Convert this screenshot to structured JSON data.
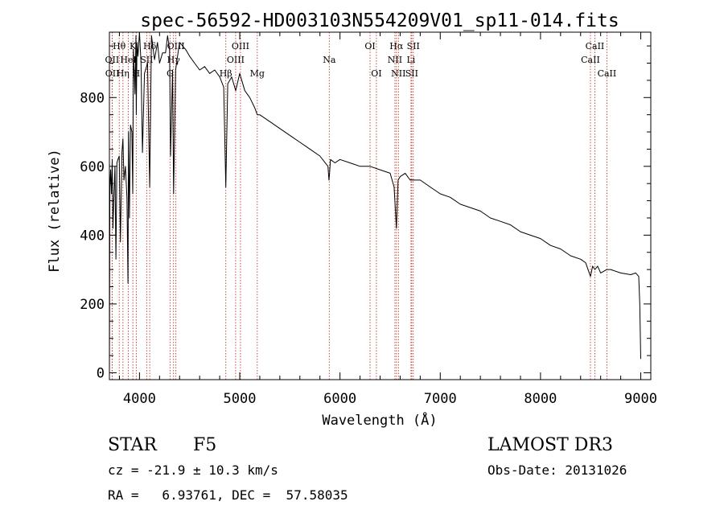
{
  "chart_data": {
    "type": "line",
    "title": "spec-56592-HD003103N554209V01_sp11-014.fits",
    "xlabel": "Wavelength (Å)",
    "ylabel": "Flux (relative)",
    "xlim": [
      3700,
      9100
    ],
    "ylim": [
      -20,
      990
    ],
    "x_ticks": [
      4000,
      5000,
      6000,
      7000,
      8000,
      9000
    ],
    "y_ticks": [
      0,
      200,
      400,
      600,
      800
    ],
    "grid": false,
    "series": [
      {
        "name": "flux",
        "x": [
          3700,
          3705,
          3712,
          3720,
          3728,
          3735,
          3745,
          3755,
          3765,
          3775,
          3785,
          3798,
          3810,
          3825,
          3835,
          3845,
          3860,
          3875,
          3885,
          3890,
          3900,
          3910,
          3925,
          3933,
          3940,
          3955,
          3965,
          3968,
          3975,
          3985,
          4000,
          4015,
          4030,
          4050,
          4080,
          4102,
          4120,
          4150,
          4180,
          4200,
          4230,
          4260,
          4280,
          4300,
          4310,
          4330,
          4340,
          4360,
          4380,
          4400,
          4430,
          4460,
          4500,
          4550,
          4600,
          4650,
          4700,
          4750,
          4800,
          4840,
          4861,
          4880,
          4920,
          4960,
          5000,
          5050,
          5100,
          5150,
          5175,
          5200,
          5300,
          5400,
          5500,
          5600,
          5700,
          5800,
          5880,
          5890,
          5896,
          5905,
          5950,
          6000,
          6100,
          6200,
          6300,
          6400,
          6500,
          6540,
          6563,
          6580,
          6600,
          6650,
          6700,
          6800,
          6900,
          7000,
          7100,
          7200,
          7300,
          7400,
          7500,
          7600,
          7700,
          7800,
          7900,
          8000,
          8100,
          8200,
          8300,
          8400,
          8450,
          8498,
          8520,
          8542,
          8570,
          8600,
          8662,
          8700,
          8800,
          8900,
          8950,
          8980,
          8990,
          9000
        ],
        "values": [
          0,
          540,
          590,
          520,
          620,
          420,
          510,
          600,
          330,
          610,
          620,
          630,
          380,
          640,
          680,
          560,
          600,
          510,
          260,
          700,
          450,
          720,
          700,
          520,
          940,
          810,
          980,
          750,
          960,
          920,
          990,
          900,
          640,
          870,
          900,
          540,
          980,
          910,
          960,
          900,
          930,
          930,
          980,
          940,
          630,
          880,
          520,
          880,
          920,
          960,
          950,
          940,
          920,
          900,
          880,
          890,
          870,
          880,
          860,
          830,
          540,
          840,
          860,
          820,
          870,
          820,
          800,
          770,
          750,
          750,
          730,
          710,
          690,
          670,
          650,
          630,
          600,
          560,
          580,
          620,
          610,
          620,
          610,
          600,
          600,
          590,
          580,
          540,
          420,
          560,
          570,
          580,
          560,
          560,
          540,
          520,
          510,
          490,
          480,
          470,
          450,
          440,
          430,
          410,
          400,
          390,
          370,
          360,
          340,
          330,
          320,
          280,
          310,
          300,
          310,
          290,
          300,
          300,
          290,
          285,
          290,
          280,
          200,
          40
        ]
      }
    ],
    "line_markers": [
      {
        "name": "Hθ",
        "wl": 3798,
        "row": 0
      },
      {
        "name": "OII",
        "wl": 3727,
        "row": 1
      },
      {
        "name": "OII",
        "wl": 3729,
        "row": 2
      },
      {
        "name": "K",
        "wl": 3934,
        "row": 0
      },
      {
        "name": "HeI",
        "wl": 3889,
        "row": 1
      },
      {
        "name": "Hη",
        "wl": 3835,
        "row": 2
      },
      {
        "name": "Hδ",
        "wl": 4102,
        "row": 0
      },
      {
        "name": "SII",
        "wl": 4072,
        "row": 1
      },
      {
        "name": "H",
        "wl": 3968,
        "row": 2
      },
      {
        "name": "OIII",
        "wl": 4363,
        "row": 0
      },
      {
        "name": "Hγ",
        "wl": 4340,
        "row": 1
      },
      {
        "name": "G",
        "wl": 4305,
        "row": 2
      },
      {
        "name": "Hβ",
        "wl": 4861,
        "row": 2
      },
      {
        "name": "OIII",
        "wl": 5007,
        "row": 0
      },
      {
        "name": "OIII",
        "wl": 4959,
        "row": 1
      },
      {
        "name": "Mg",
        "wl": 5175,
        "row": 2
      },
      {
        "name": "Na",
        "wl": 5893,
        "row": 1
      },
      {
        "name": "OI",
        "wl": 6300,
        "row": 0
      },
      {
        "name": "OI",
        "wl": 6363,
        "row": 2
      },
      {
        "name": "Hα",
        "wl": 6563,
        "row": 0
      },
      {
        "name": "NII",
        "wl": 6548,
        "row": 1
      },
      {
        "name": "NII",
        "wl": 6583,
        "row": 2
      },
      {
        "name": "SII",
        "wl": 6731,
        "row": 0
      },
      {
        "name": "Li",
        "wl": 6708,
        "row": 1
      },
      {
        "name": "SII",
        "wl": 6716,
        "row": 2
      },
      {
        "name": "CaII",
        "wl": 8542,
        "row": 0
      },
      {
        "name": "CaII",
        "wl": 8498,
        "row": 1
      },
      {
        "name": "CaII",
        "wl": 8662,
        "row": 2
      }
    ],
    "annotations": {
      "class": "STAR",
      "subclass": "F5",
      "survey": "LAMOST DR3",
      "cz": "cz = -21.9 ± 10.3 km/s",
      "obs_date": "Obs-Date: 20131026",
      "coords": "RA =   6.93761, DEC =  57.58035"
    }
  }
}
